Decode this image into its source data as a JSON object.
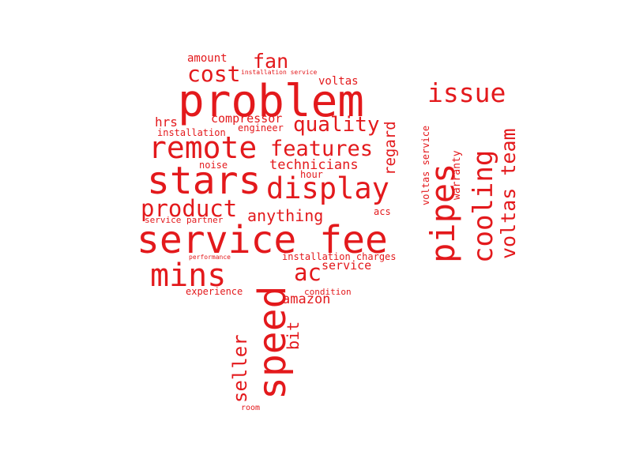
{
  "wordcloud": {
    "color": "#e3191c",
    "words": [
      {
        "text": "problem"
      },
      {
        "text": "service fee"
      },
      {
        "text": "speed"
      },
      {
        "text": "stars"
      },
      {
        "text": "mins"
      },
      {
        "text": "remote"
      },
      {
        "text": "display"
      },
      {
        "text": "pipes"
      },
      {
        "text": "cost"
      },
      {
        "text": "issue"
      },
      {
        "text": "features"
      },
      {
        "text": "quality"
      },
      {
        "text": "product"
      },
      {
        "text": "cooling"
      },
      {
        "text": "voltas team"
      },
      {
        "text": "fan"
      },
      {
        "text": "ac"
      },
      {
        "text": "technicians"
      },
      {
        "text": "anything"
      },
      {
        "text": "seller"
      },
      {
        "text": "amazon"
      },
      {
        "text": "bit"
      },
      {
        "text": "compressor"
      },
      {
        "text": "regard"
      },
      {
        "text": "voltas"
      },
      {
        "text": "hrs"
      },
      {
        "text": "amount"
      },
      {
        "text": "service"
      },
      {
        "text": "warranty"
      },
      {
        "text": "voltas service"
      },
      {
        "text": "installation"
      },
      {
        "text": "engineer"
      },
      {
        "text": "noise"
      },
      {
        "text": "hour"
      },
      {
        "text": "acs"
      },
      {
        "text": "installation charges"
      },
      {
        "text": "experience"
      },
      {
        "text": "condition"
      },
      {
        "text": "service partner"
      },
      {
        "text": "installation service"
      },
      {
        "text": "performance"
      },
      {
        "text": "room"
      }
    ]
  }
}
